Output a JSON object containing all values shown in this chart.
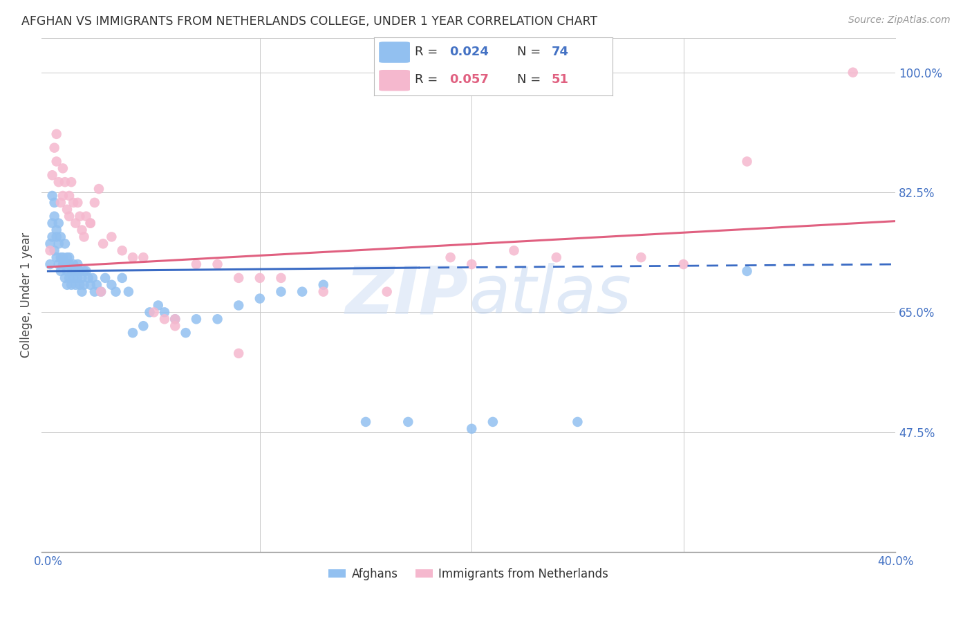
{
  "title": "AFGHAN VS IMMIGRANTS FROM NETHERLANDS COLLEGE, UNDER 1 YEAR CORRELATION CHART",
  "source": "Source: ZipAtlas.com",
  "ylabel": "College, Under 1 year",
  "x_min": 0.0,
  "x_max": 0.4,
  "y_min": 0.3,
  "y_max": 1.05,
  "blue_color": "#92C0F0",
  "pink_color": "#F5B8CE",
  "blue_line_color": "#3A6BC4",
  "pink_line_color": "#E06080",
  "R_blue": 0.024,
  "N_blue": 74,
  "R_pink": 0.057,
  "N_pink": 51,
  "legend_label_blue": "Afghans",
  "legend_label_pink": "Immigrants from Netherlands",
  "watermark": "ZIPatlas",
  "afghans_x": [
    0.001,
    0.001,
    0.002,
    0.002,
    0.002,
    0.003,
    0.003,
    0.003,
    0.004,
    0.004,
    0.004,
    0.005,
    0.005,
    0.005,
    0.006,
    0.006,
    0.006,
    0.007,
    0.007,
    0.008,
    0.008,
    0.008,
    0.009,
    0.009,
    0.009,
    0.01,
    0.01,
    0.01,
    0.011,
    0.011,
    0.012,
    0.012,
    0.013,
    0.013,
    0.014,
    0.014,
    0.015,
    0.015,
    0.016,
    0.016,
    0.017,
    0.017,
    0.018,
    0.019,
    0.02,
    0.021,
    0.022,
    0.023,
    0.025,
    0.027,
    0.03,
    0.032,
    0.035,
    0.038,
    0.04,
    0.045,
    0.048,
    0.052,
    0.055,
    0.06,
    0.065,
    0.07,
    0.08,
    0.09,
    0.1,
    0.11,
    0.12,
    0.13,
    0.15,
    0.17,
    0.2,
    0.21,
    0.25,
    0.33
  ],
  "afghans_y": [
    0.72,
    0.75,
    0.82,
    0.78,
    0.76,
    0.81,
    0.79,
    0.74,
    0.77,
    0.76,
    0.73,
    0.78,
    0.75,
    0.72,
    0.73,
    0.71,
    0.76,
    0.73,
    0.72,
    0.75,
    0.72,
    0.7,
    0.73,
    0.71,
    0.69,
    0.72,
    0.7,
    0.73,
    0.71,
    0.69,
    0.72,
    0.7,
    0.71,
    0.69,
    0.72,
    0.7,
    0.71,
    0.69,
    0.7,
    0.68,
    0.71,
    0.69,
    0.71,
    0.7,
    0.69,
    0.7,
    0.68,
    0.69,
    0.68,
    0.7,
    0.69,
    0.68,
    0.7,
    0.68,
    0.62,
    0.63,
    0.65,
    0.66,
    0.65,
    0.64,
    0.62,
    0.64,
    0.64,
    0.66,
    0.67,
    0.68,
    0.68,
    0.69,
    0.49,
    0.49,
    0.48,
    0.49,
    0.49,
    0.71
  ],
  "netherlands_x": [
    0.001,
    0.002,
    0.003,
    0.004,
    0.004,
    0.005,
    0.006,
    0.007,
    0.007,
    0.008,
    0.009,
    0.01,
    0.01,
    0.011,
    0.012,
    0.013,
    0.014,
    0.015,
    0.016,
    0.017,
    0.018,
    0.02,
    0.022,
    0.024,
    0.026,
    0.03,
    0.035,
    0.04,
    0.045,
    0.05,
    0.055,
    0.06,
    0.07,
    0.08,
    0.09,
    0.1,
    0.11,
    0.13,
    0.16,
    0.19,
    0.2,
    0.22,
    0.24,
    0.28,
    0.3,
    0.33,
    0.02,
    0.025,
    0.06,
    0.09,
    0.38
  ],
  "netherlands_y": [
    0.74,
    0.85,
    0.89,
    0.91,
    0.87,
    0.84,
    0.81,
    0.86,
    0.82,
    0.84,
    0.8,
    0.82,
    0.79,
    0.84,
    0.81,
    0.78,
    0.81,
    0.79,
    0.77,
    0.76,
    0.79,
    0.78,
    0.81,
    0.83,
    0.75,
    0.76,
    0.74,
    0.73,
    0.73,
    0.65,
    0.64,
    0.64,
    0.72,
    0.72,
    0.7,
    0.7,
    0.7,
    0.68,
    0.68,
    0.73,
    0.72,
    0.74,
    0.73,
    0.73,
    0.72,
    0.87,
    0.78,
    0.68,
    0.63,
    0.59,
    1.0
  ]
}
